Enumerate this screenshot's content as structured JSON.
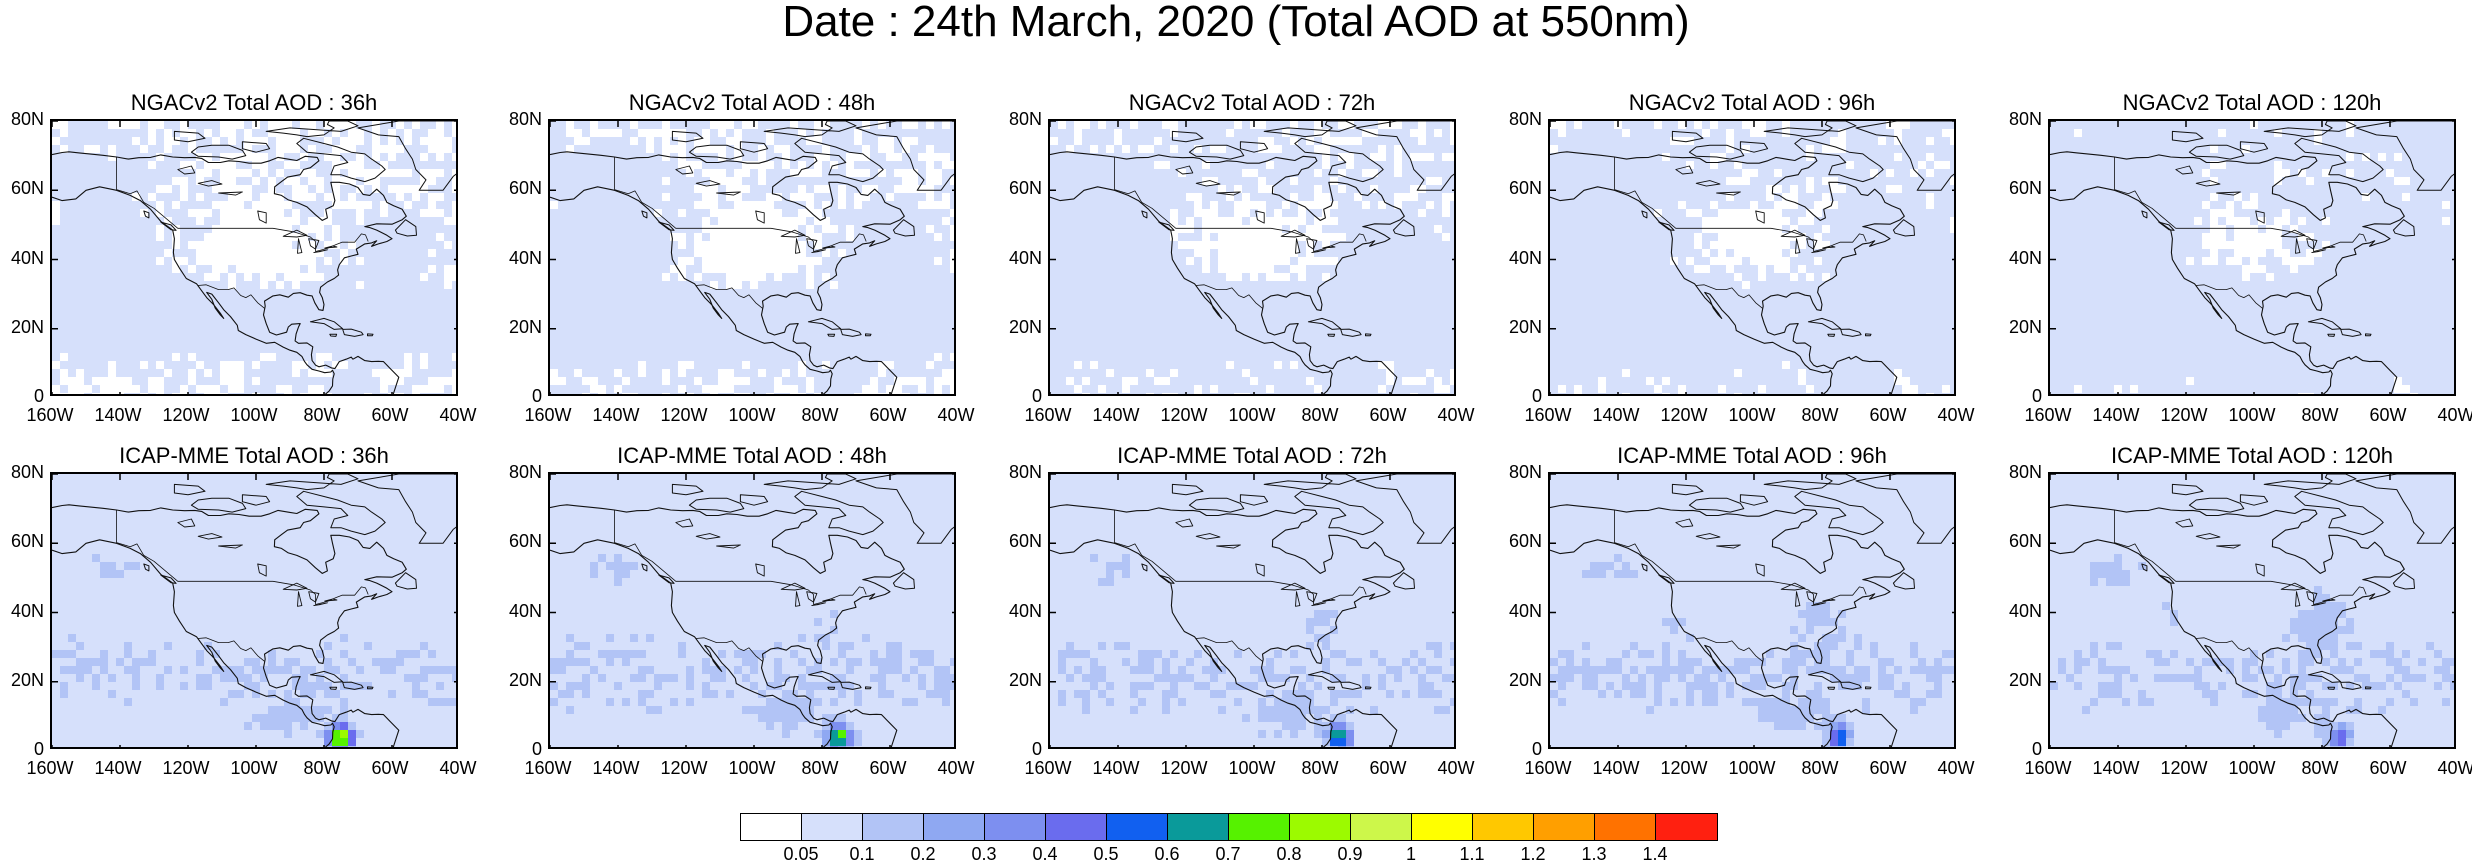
{
  "title": "Date : 24th March, 2020 (Total AOD at 550nm)",
  "lat_ticks": [
    "80N",
    "60N",
    "40N",
    "20N",
    "0"
  ],
  "lon_ticks": [
    "160W",
    "140W",
    "120W",
    "100W",
    "80W",
    "60W",
    "40W"
  ],
  "panels": [
    {
      "title": "NGACv2 Total AOD : 36h",
      "model": "NGACv2",
      "lead": "36h"
    },
    {
      "title": "NGACv2 Total AOD : 48h",
      "model": "NGACv2",
      "lead": "48h"
    },
    {
      "title": "NGACv2 Total AOD : 72h",
      "model": "NGACv2",
      "lead": "72h"
    },
    {
      "title": "NGACv2 Total AOD : 96h",
      "model": "NGACv2",
      "lead": "96h"
    },
    {
      "title": "NGACv2 Total AOD : 120h",
      "model": "NGACv2",
      "lead": "120h"
    },
    {
      "title": "ICAP-MME Total AOD : 36h",
      "model": "ICAP-MME",
      "lead": "36h"
    },
    {
      "title": "ICAP-MME Total AOD : 48h",
      "model": "ICAP-MME",
      "lead": "48h"
    },
    {
      "title": "ICAP-MME Total AOD : 72h",
      "model": "ICAP-MME",
      "lead": "72h"
    },
    {
      "title": "ICAP-MME Total AOD : 96h",
      "model": "ICAP-MME",
      "lead": "96h"
    },
    {
      "title": "ICAP-MME Total AOD : 120h",
      "model": "ICAP-MME",
      "lead": "120h"
    }
  ],
  "colorbar": {
    "colors": [
      "#ffffff",
      "#d6e0fb",
      "#b2c4f6",
      "#8fa8f2",
      "#7d8ff0",
      "#6a6cee",
      "#1160f0",
      "#0a9a9a",
      "#56f200",
      "#9cfa00",
      "#cdf74a",
      "#ffff00",
      "#ffc800",
      "#ff9f00",
      "#ff7200",
      "#ff2010"
    ],
    "labels": [
      "0.05",
      "0.1",
      "0.2",
      "0.3",
      "0.4",
      "0.5",
      "0.6",
      "0.7",
      "0.8",
      "0.9",
      "1",
      "1.1",
      "1.2",
      "1.3",
      "1.4"
    ]
  }
}
